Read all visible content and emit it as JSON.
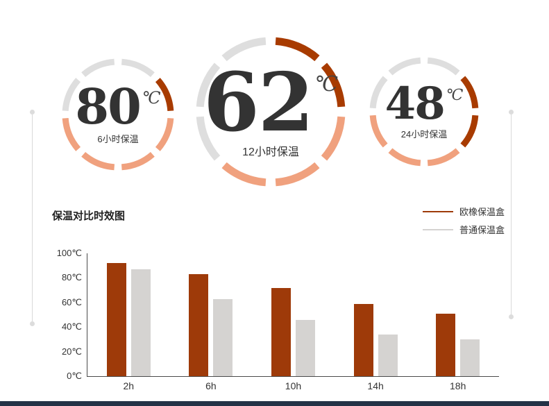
{
  "colors": {
    "dark": "#a83b00",
    "peach": "#f0a17e",
    "gray": "#dedede",
    "bottom_bar": "#233246"
  },
  "gauges": [
    {
      "temp": "80",
      "unit": "℃",
      "label": "6小时保温"
    },
    {
      "temp": "62",
      "unit": "℃",
      "label": "12小时保温"
    },
    {
      "temp": "48",
      "unit": "℃",
      "label": "24小时保温"
    }
  ],
  "chart": {
    "title": "保温对比时效图",
    "legend": [
      {
        "label": "欧橡保温盒",
        "color": "#9e3a09"
      },
      {
        "label": "普通保温盒",
        "color": "#d5d3d1"
      }
    ],
    "y_ticks": [
      "100℃",
      "80℃",
      "60℃",
      "40℃",
      "20℃",
      "0℃"
    ]
  },
  "chart_data": {
    "type": "bar",
    "title": "保温对比时效图",
    "categories": [
      "2h",
      "6h",
      "10h",
      "14h",
      "18h"
    ],
    "series": [
      {
        "name": "欧橡保温盒",
        "color": "#9e3a09",
        "values": [
          92,
          83,
          72,
          59,
          51
        ]
      },
      {
        "name": "普通保温盒",
        "color": "#d5d3d1",
        "values": [
          87,
          63,
          46,
          34,
          30
        ]
      }
    ],
    "ylim": [
      0,
      100
    ],
    "grid": false,
    "legend_position": "top-right"
  }
}
